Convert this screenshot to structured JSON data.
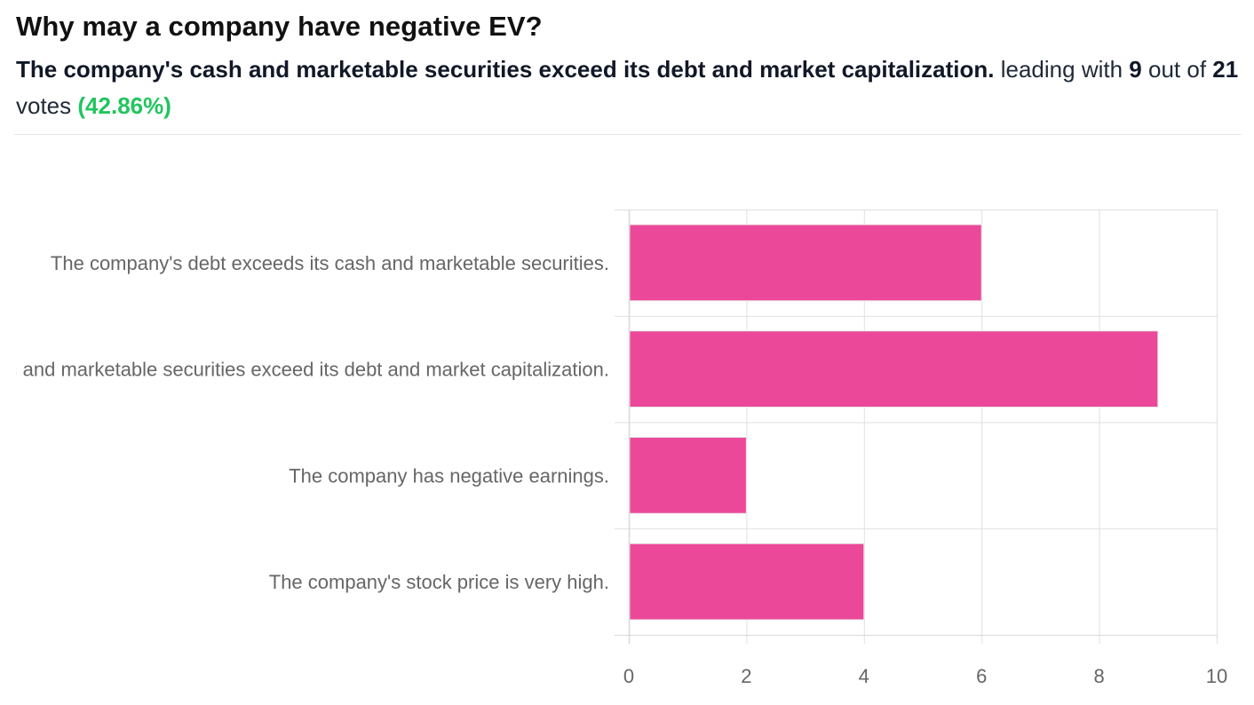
{
  "poll": {
    "question": "Why may a company have negative EV?",
    "leading_answer": "The company's cash and marketable securities exceed its debt and market capitalization.",
    "leading_word": "leading",
    "with_word": "with",
    "votes_leading": "9",
    "out_of_word": "out of",
    "votes_total": "21",
    "votes_word": "votes",
    "percent": "(42.86%)"
  },
  "colors": {
    "bar": "#ec4899",
    "bar_stroke": "#e8e8e8",
    "grid": "#e0e0e0",
    "axis": "#d8d8d8",
    "percent": "#22c55e"
  },
  "chart_data": {
    "type": "bar",
    "orientation": "horizontal",
    "title": "",
    "xlabel": "",
    "ylabel": "",
    "categories": [
      "The company's debt exceeds its cash and marketable securities.",
      "The company's cash and marketable securities exceed its debt and market capitalization.",
      "The company has negative earnings.",
      "The company's stock price is very high."
    ],
    "values": [
      6,
      9,
      2,
      4
    ],
    "xlim": [
      0,
      10
    ],
    "xticks": [
      0,
      2,
      4,
      6,
      8,
      10
    ],
    "grid": true,
    "legend": "none"
  }
}
